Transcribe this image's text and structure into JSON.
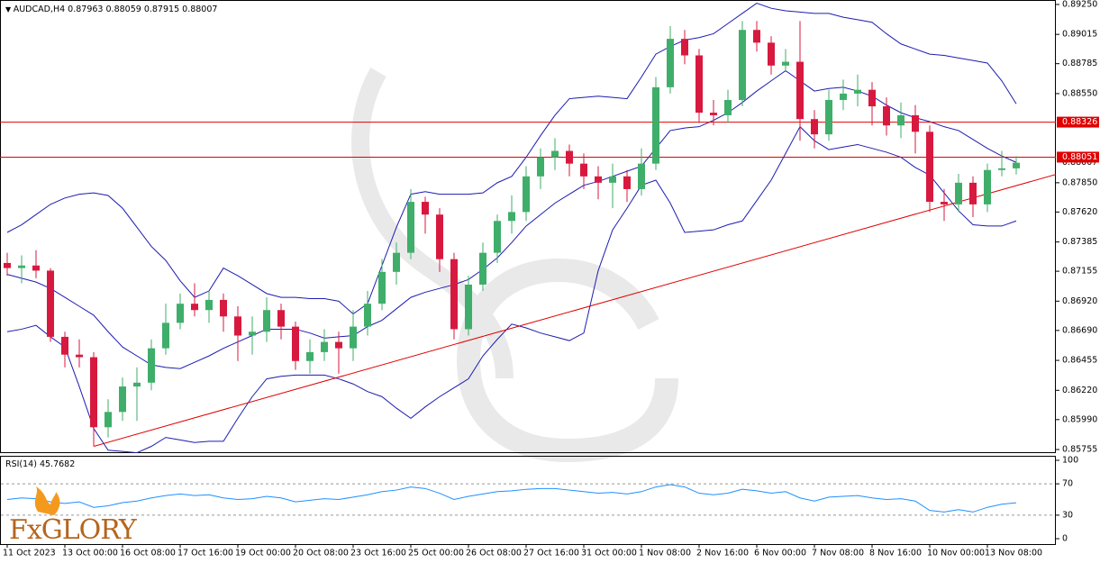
{
  "chart_data": {
    "type": "candlestick",
    "symbol": "AUDCAD,H4",
    "up_color": "#3fae6a",
    "down_color": "#d7193f",
    "categories": [
      "11 Oct 2023",
      null,
      null,
      null,
      "13 Oct 00:00",
      null,
      null,
      null,
      "16 Oct 08:00",
      null,
      null,
      null,
      "17 Oct 16:00",
      null,
      null,
      null,
      "19 Oct 00:00",
      null,
      null,
      null,
      "20 Oct 08:00",
      null,
      null,
      null,
      "23 Oct 16:00",
      null,
      null,
      null,
      "25 Oct 00:00",
      null,
      null,
      null,
      "26 Oct 08:00",
      null,
      null,
      null,
      "27 Oct 16:00",
      null,
      null,
      null,
      "31 Oct 00:00",
      null,
      null,
      null,
      "1 Nov 08:00",
      null,
      null,
      null,
      "2 Nov 16:00",
      null,
      null,
      null,
      "6 Nov 00:00",
      null,
      null,
      null,
      "7 Nov 08:00",
      null,
      null,
      null,
      "8 Nov 16:00",
      null,
      null,
      null,
      "10 Nov 00:00",
      null,
      null,
      null,
      "13 Nov 08:00",
      null,
      null
    ],
    "candles": [
      [
        0.8722,
        0.873,
        0.8712,
        0.8718
      ],
      [
        0.8718,
        0.8728,
        0.8706,
        0.872
      ],
      [
        0.872,
        0.8732,
        0.871,
        0.8716
      ],
      [
        0.8716,
        0.8718,
        0.866,
        0.8664
      ],
      [
        0.8664,
        0.8668,
        0.864,
        0.865
      ],
      [
        0.865,
        0.8662,
        0.864,
        0.8648
      ],
      [
        0.8648,
        0.8652,
        0.8578,
        0.8593
      ],
      [
        0.8593,
        0.8615,
        0.8585,
        0.8605
      ],
      [
        0.8605,
        0.8632,
        0.8598,
        0.8625
      ],
      [
        0.8625,
        0.864,
        0.8598,
        0.8628
      ],
      [
        0.8628,
        0.8662,
        0.8622,
        0.8655
      ],
      [
        0.8655,
        0.869,
        0.865,
        0.8675
      ],
      [
        0.8675,
        0.8698,
        0.867,
        0.869
      ],
      [
        0.869,
        0.8706,
        0.868,
        0.8685
      ],
      [
        0.8685,
        0.87,
        0.8675,
        0.8693
      ],
      [
        0.8693,
        0.8698,
        0.8668,
        0.868
      ],
      [
        0.868,
        0.8688,
        0.8645,
        0.8665
      ],
      [
        0.8665,
        0.868,
        0.865,
        0.8668
      ],
      [
        0.8668,
        0.8695,
        0.866,
        0.8685
      ],
      [
        0.8685,
        0.869,
        0.8662,
        0.8672
      ],
      [
        0.8672,
        0.8676,
        0.8638,
        0.8645
      ],
      [
        0.8645,
        0.8662,
        0.8635,
        0.8652
      ],
      [
        0.8652,
        0.867,
        0.8645,
        0.866
      ],
      [
        0.866,
        0.8668,
        0.8635,
        0.8655
      ],
      [
        0.8655,
        0.8685,
        0.8645,
        0.8672
      ],
      [
        0.8672,
        0.87,
        0.8665,
        0.869
      ],
      [
        0.869,
        0.8725,
        0.8685,
        0.8715
      ],
      [
        0.8715,
        0.8738,
        0.8705,
        0.873
      ],
      [
        0.873,
        0.878,
        0.8725,
        0.877
      ],
      [
        0.877,
        0.8774,
        0.8745,
        0.876
      ],
      [
        0.876,
        0.8765,
        0.8715,
        0.8725
      ],
      [
        0.8725,
        0.873,
        0.8662,
        0.867
      ],
      [
        0.867,
        0.8712,
        0.8665,
        0.8705
      ],
      [
        0.8705,
        0.8738,
        0.87,
        0.873
      ],
      [
        0.873,
        0.876,
        0.8722,
        0.8755
      ],
      [
        0.8755,
        0.8775,
        0.8745,
        0.8762
      ],
      [
        0.8762,
        0.8798,
        0.8755,
        0.879
      ],
      [
        0.879,
        0.8812,
        0.878,
        0.8805
      ],
      [
        0.8805,
        0.882,
        0.8795,
        0.881
      ],
      [
        0.881,
        0.8815,
        0.879,
        0.88
      ],
      [
        0.88,
        0.8808,
        0.878,
        0.879
      ],
      [
        0.879,
        0.8798,
        0.8772,
        0.8785
      ],
      [
        0.8785,
        0.88,
        0.8765,
        0.879
      ],
      [
        0.879,
        0.8795,
        0.877,
        0.878
      ],
      [
        0.878,
        0.8812,
        0.8775,
        0.88
      ],
      [
        0.88,
        0.8868,
        0.8795,
        0.886
      ],
      [
        0.886,
        0.8908,
        0.8855,
        0.8898
      ],
      [
        0.8898,
        0.8905,
        0.8878,
        0.8885
      ],
      [
        0.8885,
        0.889,
        0.8832,
        0.884
      ],
      [
        0.884,
        0.885,
        0.883,
        0.8838
      ],
      [
        0.8838,
        0.8858,
        0.8832,
        0.885
      ],
      [
        0.885,
        0.8912,
        0.8845,
        0.8905
      ],
      [
        0.8905,
        0.8912,
        0.8888,
        0.8895
      ],
      [
        0.8895,
        0.89,
        0.887,
        0.8877
      ],
      [
        0.8877,
        0.889,
        0.8872,
        0.888
      ],
      [
        0.888,
        0.8912,
        0.8818,
        0.8835
      ],
      [
        0.8835,
        0.8842,
        0.8812,
        0.8823
      ],
      [
        0.8823,
        0.8858,
        0.8818,
        0.885
      ],
      [
        0.885,
        0.8866,
        0.8842,
        0.8855
      ],
      [
        0.8855,
        0.887,
        0.8845,
        0.8858
      ],
      [
        0.8858,
        0.8864,
        0.883,
        0.8845
      ],
      [
        0.8845,
        0.8852,
        0.8822,
        0.883
      ],
      [
        0.883,
        0.8848,
        0.882,
        0.8838
      ],
      [
        0.8838,
        0.8846,
        0.8808,
        0.8825
      ],
      [
        0.8825,
        0.883,
        0.8762,
        0.877
      ],
      [
        0.877,
        0.878,
        0.8755,
        0.8768
      ],
      [
        0.8768,
        0.8792,
        0.8762,
        0.8785
      ],
      [
        0.8785,
        0.879,
        0.8758,
        0.8768
      ],
      [
        0.8768,
        0.88,
        0.8762,
        0.8795
      ],
      [
        0.8795,
        0.881,
        0.879,
        0.87963
      ],
      [
        0.87963,
        0.88059,
        0.87915,
        0.88007
      ]
    ],
    "ylim": [
      0.85734,
      0.89285
    ],
    "yticks": [
      {
        "value": 0.8925,
        "label": "0.89250"
      },
      0.89015,
      0.88785,
      {
        "value": 0.8855,
        "label": "0.88550"
      },
      {
        "value": 0.8785,
        "label": "0.87850"
      },
      {
        "value": 0.8762,
        "label": "0.87620"
      },
      0.87385,
      0.87155,
      {
        "value": 0.8692,
        "label": "0.86920"
      },
      {
        "value": 0.8669,
        "label": "0.86690"
      },
      0.86455,
      {
        "value": 0.8622,
        "label": "0.86220"
      },
      {
        "value": 0.8599,
        "label": "0.85990"
      },
      0.85755
    ],
    "bands": {
      "color": "#1c1cb0",
      "upper": [
        0.8746,
        0.8752,
        0.876,
        0.8768,
        0.8773,
        0.8776,
        0.8777,
        0.8775,
        0.8765,
        0.875,
        0.8735,
        0.8724,
        0.8708,
        0.8695,
        0.87,
        0.8718,
        0.8712,
        0.8705,
        0.8698,
        0.8695,
        0.8695,
        0.8694,
        0.8694,
        0.8692,
        0.8682,
        0.869,
        0.872,
        0.875,
        0.8776,
        0.8778,
        0.8776,
        0.8776,
        0.8776,
        0.8777,
        0.8785,
        0.879,
        0.8805,
        0.8822,
        0.8838,
        0.8851,
        0.8852,
        0.8853,
        0.8852,
        0.8851,
        0.8868,
        0.8886,
        0.8892,
        0.8897,
        0.8899,
        0.8902,
        0.891,
        0.8918,
        0.8926,
        0.8922,
        0.892,
        0.8919,
        0.8918,
        0.8918,
        0.8915,
        0.8913,
        0.8911,
        0.8902,
        0.8894,
        0.889,
        0.8886,
        0.8885,
        0.8883,
        0.8881,
        0.8879,
        0.8865,
        0.8847
      ],
      "middle": [
        0.8713,
        0.871,
        0.8707,
        0.8702,
        0.8695,
        0.8688,
        0.8681,
        0.8668,
        0.8656,
        0.8649,
        0.8642,
        0.864,
        0.8639,
        0.8644,
        0.8649,
        0.8655,
        0.866,
        0.8665,
        0.867,
        0.867,
        0.867,
        0.8667,
        0.8663,
        0.8664,
        0.8665,
        0.8672,
        0.8677,
        0.8686,
        0.8695,
        0.8699,
        0.8702,
        0.8705,
        0.8709,
        0.8717,
        0.8726,
        0.8738,
        0.8751,
        0.876,
        0.8769,
        0.8776,
        0.8783,
        0.8786,
        0.879,
        0.8794,
        0.8798,
        0.8812,
        0.8826,
        0.8828,
        0.8829,
        0.8834,
        0.884,
        0.8848,
        0.8857,
        0.8865,
        0.8873,
        0.8865,
        0.8857,
        0.8859,
        0.886,
        0.8857,
        0.8853,
        0.8846,
        0.884,
        0.8836,
        0.8833,
        0.8829,
        0.8826,
        0.8819,
        0.8812,
        0.8806,
        0.8801
      ],
      "lower": [
        0.8668,
        0.867,
        0.8673,
        0.8664,
        0.8656,
        0.8625,
        0.8592,
        0.8575,
        0.8574,
        0.8573,
        0.8578,
        0.8585,
        0.8583,
        0.8581,
        0.8582,
        0.8582,
        0.86,
        0.8617,
        0.8631,
        0.8633,
        0.8634,
        0.8634,
        0.8634,
        0.8631,
        0.8627,
        0.8621,
        0.8617,
        0.8608,
        0.86,
        0.8609,
        0.8617,
        0.8624,
        0.8631,
        0.8649,
        0.8662,
        0.8674,
        0.8671,
        0.8667,
        0.8664,
        0.8661,
        0.8667,
        0.8716,
        0.8748,
        0.8765,
        0.8783,
        0.8787,
        0.8769,
        0.8746,
        0.8747,
        0.8748,
        0.8752,
        0.8755,
        0.8771,
        0.8787,
        0.8808,
        0.8829,
        0.8818,
        0.8811,
        0.8813,
        0.8815,
        0.8812,
        0.8809,
        0.8805,
        0.8797,
        0.8791,
        0.8777,
        0.8763,
        0.8752,
        0.8751,
        0.8751,
        0.8755
      ]
    },
    "levels": [
      {
        "value": 0.88326,
        "color": "#e00000"
      },
      {
        "value": 0.88051,
        "color": "#e00000"
      }
    ],
    "trendline": {
      "x": [
        6,
        72.9
      ],
      "y": [
        0.8578,
        0.8792
      ],
      "color": "#e00000"
    },
    "rsi": {
      "name": "RSI(14)",
      "color": "#1e90ff",
      "ylim": [
        0,
        100
      ],
      "yticks": [
        0,
        30,
        70,
        100
      ],
      "values": [
        50,
        52,
        51,
        47,
        45,
        47,
        40,
        42,
        46,
        48,
        52,
        55,
        57,
        55,
        56,
        52,
        50,
        51,
        54,
        52,
        47,
        49,
        51,
        50,
        53,
        56,
        60,
        62,
        66,
        64,
        58,
        50,
        54,
        57,
        60,
        61,
        63,
        64,
        64,
        62,
        60,
        58,
        59,
        57,
        60,
        66,
        69,
        66,
        58,
        56,
        58,
        63,
        61,
        58,
        60,
        52,
        48,
        53,
        54,
        55,
        52,
        50,
        51,
        48,
        36,
        34,
        37,
        34,
        40,
        44,
        45.7682
      ]
    },
    "logo": "FxGLORY"
  }
}
